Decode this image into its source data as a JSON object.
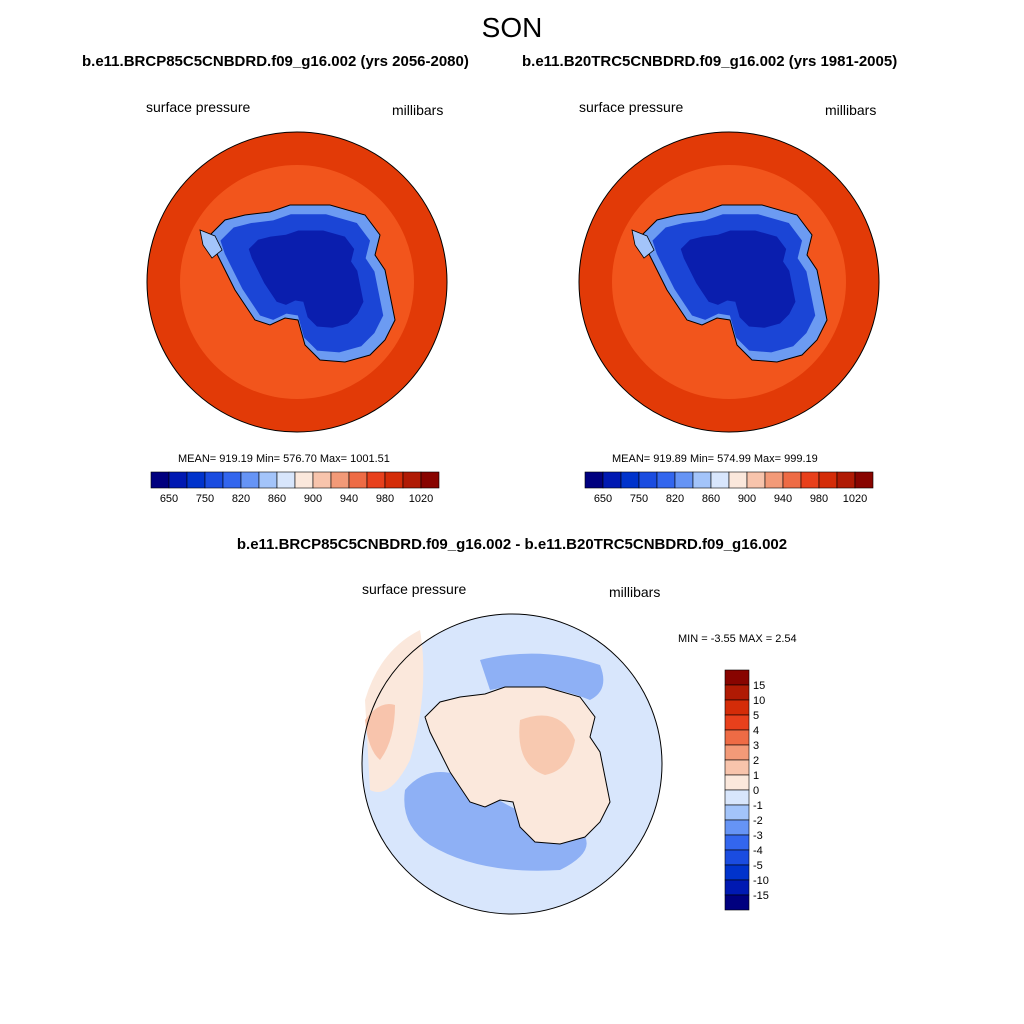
{
  "figure": {
    "season": "SON"
  },
  "panels": [
    {
      "title": "b.e11.BRCP85C5CNBDRD.f09_g16.002 (yrs 2056-2080)",
      "left_label": "surface pressure",
      "right_label": "millibars",
      "stats": "MEAN= 919.19  Min= 576.70  Max= 1001.51"
    },
    {
      "title": "b.e11.B20TRC5CNBDRD.f09_g16.002 (yrs 1981-2005)",
      "left_label": "surface pressure",
      "right_label": "millibars",
      "stats": "MEAN= 919.89  Min= 574.99  Max= 999.19"
    },
    {
      "title": "b.e11.BRCP85C5CNBDRD.f09_g16.002 - b.e11.B20TRC5CNBDRD.f09_g16.002",
      "left_label": "surface pressure",
      "right_label": "millibars",
      "stats": "MIN =  -3.55 MAX =   2.54"
    }
  ],
  "colorbar_abs": {
    "colors": [
      "#00007f",
      "#0019b2",
      "#0033cc",
      "#1a4ce0",
      "#3366ee",
      "#6694f5",
      "#a3c4fa",
      "#d8e6fc",
      "#fbe8dc",
      "#f8c4ac",
      "#f39a78",
      "#ee6b45",
      "#e8401c",
      "#d42c08",
      "#b01a04",
      "#880400"
    ],
    "ticks": [
      "650",
      "750",
      "820",
      "860",
      "900",
      "940",
      "980",
      "1020"
    ]
  },
  "colorbar_diff": {
    "colors": [
      "#880400",
      "#b01a04",
      "#d42c08",
      "#e8401c",
      "#ee6b45",
      "#f39a78",
      "#f8c4ac",
      "#fbe8dc",
      "#d8e6fc",
      "#a3c4fa",
      "#6694f5",
      "#3366ee",
      "#1a4ce0",
      "#0033cc",
      "#0019b2",
      "#00007f"
    ],
    "ticks": [
      "15",
      "10",
      "5",
      "4",
      "3",
      "2",
      "1",
      "0",
      "-1",
      "-2",
      "-3",
      "-4",
      "-5",
      "-10",
      "-15"
    ]
  },
  "colors": {
    "outer_ring": "#e23a07",
    "middle_ring": "#f2551c",
    "ice_low": "#0a1eae",
    "ice_mid": "#1b45d6",
    "ice_edge": "#6c9bf2",
    "diff_pos": "#f8c9b0",
    "diff_neg": "#8eb0f5"
  }
}
